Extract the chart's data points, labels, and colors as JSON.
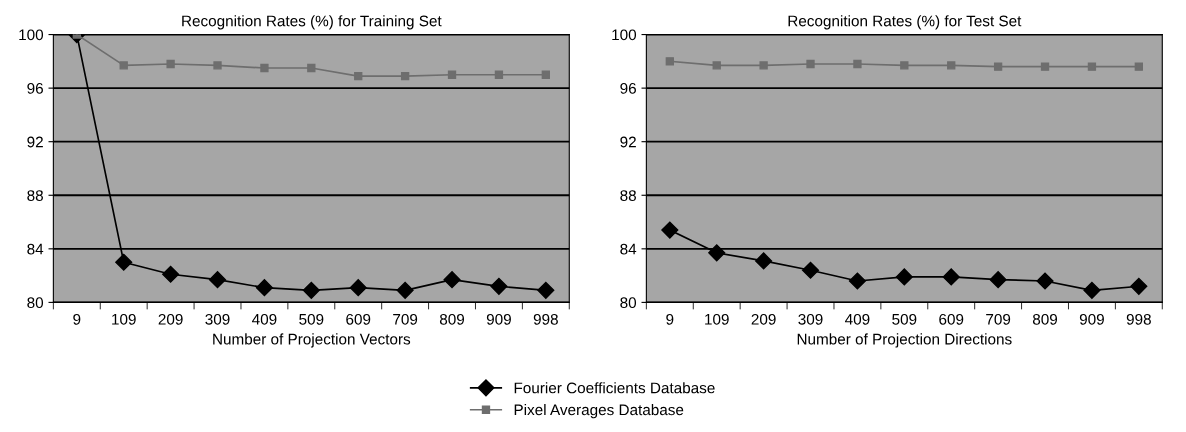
{
  "chart_data": [
    {
      "type": "line",
      "title": "Recognition Rates (%) for Training Set",
      "xlabel": "Number of Projection Vectors",
      "categories": [
        "9",
        "109",
        "209",
        "309",
        "409",
        "509",
        "609",
        "709",
        "809",
        "909",
        "998"
      ],
      "ylim": [
        80,
        100
      ],
      "yticks": [
        80,
        84,
        88,
        92,
        96,
        100
      ],
      "grid": "y",
      "legend": "bottom",
      "series": [
        {
          "name": "Fourier Coefficients Database",
          "color": "#000000",
          "marker": "diamond",
          "values": [
            100,
            83.0,
            82.1,
            81.7,
            81.1,
            80.9,
            81.1,
            80.9,
            81.7,
            81.2,
            80.9
          ]
        },
        {
          "name": "Pixel Averages Database",
          "color": "#6e6e6e",
          "marker": "square",
          "values": [
            100,
            97.7,
            97.8,
            97.7,
            97.5,
            97.5,
            96.9,
            96.9,
            97.0,
            97.0,
            97.0
          ]
        }
      ]
    },
    {
      "type": "line",
      "title": "Recognition Rates (%) for Test Set",
      "xlabel": "Number of Projection Directions",
      "categories": [
        "9",
        "109",
        "209",
        "309",
        "409",
        "509",
        "609",
        "709",
        "809",
        "909",
        "998"
      ],
      "ylim": [
        80,
        100
      ],
      "yticks": [
        80,
        84,
        88,
        92,
        96,
        100
      ],
      "grid": "y",
      "series": [
        {
          "color": "#000000",
          "marker": "diamond",
          "values": [
            85.4,
            83.7,
            83.1,
            82.4,
            81.6,
            81.9,
            81.9,
            81.7,
            81.6,
            80.9,
            81.2
          ]
        },
        {
          "color": "#6e6e6e",
          "marker": "square",
          "values": [
            98.0,
            97.7,
            97.7,
            97.8,
            97.8,
            97.7,
            97.7,
            97.6,
            97.6,
            97.6,
            97.6
          ]
        }
      ]
    }
  ]
}
